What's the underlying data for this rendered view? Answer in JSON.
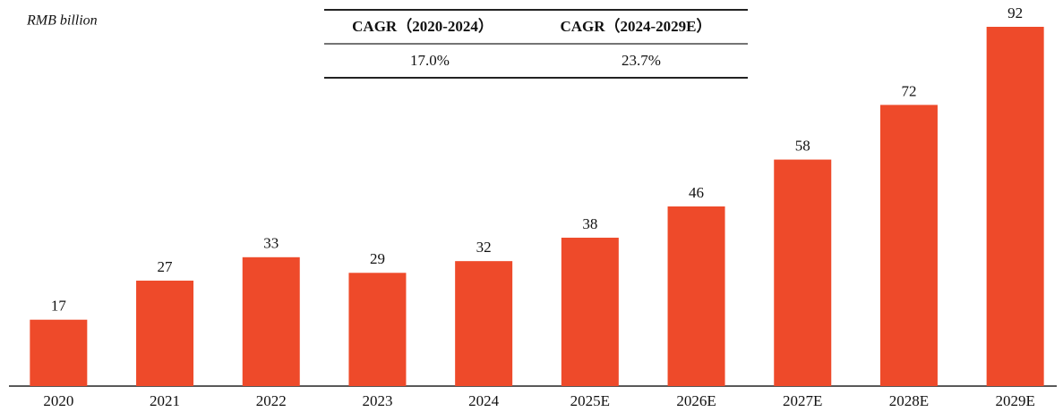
{
  "chart_data": {
    "type": "bar",
    "ylabel": "RMB billion",
    "categories": [
      "2020",
      "2021",
      "2022",
      "2023",
      "2024",
      "2025E",
      "2026E",
      "2027E",
      "2028E",
      "2029E"
    ],
    "values": [
      17,
      27,
      33,
      29,
      32,
      38,
      46,
      58,
      72,
      92
    ],
    "color": "#ee4a2a",
    "cagr_table": {
      "headers": [
        "CAGR（2020-2024）",
        "CAGR（2024-2029E）"
      ],
      "values": [
        "17.0%",
        "23.7%"
      ]
    }
  }
}
